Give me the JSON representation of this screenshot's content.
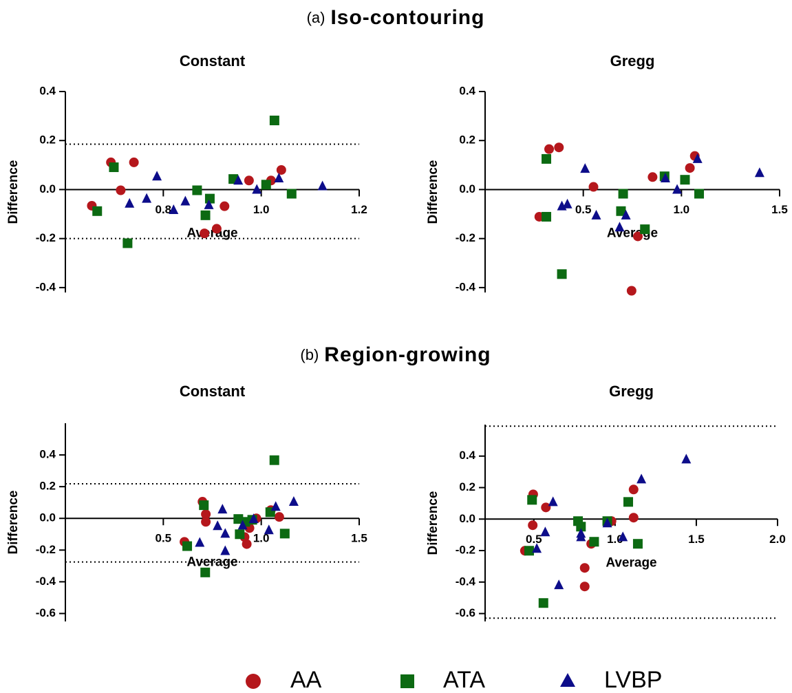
{
  "sections": [
    {
      "label": "(a)",
      "title": "Iso-contouring"
    },
    {
      "label": "(b)",
      "title": "Region-growing"
    }
  ],
  "chart_data": [
    {
      "type": "scatter",
      "title": "Constant",
      "x_label": "Average",
      "y_label": "Difference",
      "xlim": [
        0.6,
        1.2
      ],
      "ylim": [
        -0.42,
        0.4
      ],
      "xticks": [
        0.8,
        {
          "value": 1,
          "label": "1.0"
        },
        1.2
      ],
      "yticks": [
        -0.4,
        -0.2,
        {
          "value": 0,
          "label": "0.0"
        },
        0.2,
        0.4
      ],
      "hlines": [
        0.185,
        -0.2
      ],
      "hline_style": "dotted",
      "grid": false,
      "series": [
        {
          "name": "AA",
          "color": "#b5171c",
          "marker": "circle",
          "x": [
            0.654,
            0.693,
            0.713,
            0.74,
            0.884,
            0.909,
            0.925,
            0.975,
            1.02,
            1.041
          ],
          "values": [
            -0.066,
            0.111,
            -0.003,
            0.111,
            -0.179,
            -0.16,
            -0.068,
            0.037,
            0.037,
            0.08
          ]
        },
        {
          "name": "ATA",
          "color": "#0c6a12",
          "marker": "square",
          "x": [
            0.665,
            0.699,
            0.727,
            0.869,
            0.886,
            0.895,
            0.943,
            1.01,
            1.027,
            1.062
          ],
          "values": [
            -0.088,
            0.091,
            -0.219,
            -0.003,
            -0.105,
            -0.037,
            0.043,
            0.02,
            0.282,
            -0.017
          ]
        },
        {
          "name": "LVBP",
          "color": "#0d0d8a",
          "marker": "triangle",
          "x": [
            0.731,
            0.766,
            0.787,
            0.821,
            0.845,
            0.893,
            0.953,
            0.991,
            1.036,
            1.125
          ],
          "values": [
            -0.057,
            -0.037,
            0.054,
            -0.083,
            -0.048,
            -0.063,
            0.037,
            0.0,
            0.046,
            0.014
          ]
        }
      ]
    },
    {
      "type": "scatter",
      "title": "Gregg",
      "x_label": "Average",
      "y_label": "Difference",
      "xlim": [
        0,
        1.5
      ],
      "ylim": [
        -0.42,
        0.4
      ],
      "xticks": [
        0.5,
        {
          "value": 1,
          "label": "1.0"
        },
        1.5
      ],
      "yticks": [
        -0.4,
        -0.2,
        {
          "value": 0,
          "label": "0.0"
        },
        0.2,
        0.4
      ],
      "hlines": [],
      "hline_style": "dotted",
      "grid": false,
      "series": [
        {
          "name": "AA",
          "color": "#b5171c",
          "marker": "circle",
          "x": [
            0.276,
            0.326,
            0.376,
            0.552,
            0.746,
            0.778,
            0.853,
            1.043,
            1.068
          ],
          "values": [
            -0.111,
            0.165,
            0.172,
            0.011,
            -0.413,
            -0.191,
            0.051,
            0.088,
            0.137
          ]
        },
        {
          "name": "ATA",
          "color": "#0c6a12",
          "marker": "square",
          "x": [
            0.312,
            0.312,
            0.391,
            0.703,
            0.692,
            0.814,
            0.914,
            1.018,
            1.09
          ],
          "values": [
            0.125,
            -0.111,
            -0.345,
            -0.017,
            -0.088,
            -0.162,
            0.054,
            0.04,
            -0.017
          ]
        },
        {
          "name": "LVBP",
          "color": "#0d0d8a",
          "marker": "triangle",
          "x": [
            0.391,
            0.419,
            0.509,
            0.566,
            0.685,
            0.717,
            0.918,
            0.978,
            1.082,
            1.398
          ],
          "values": [
            -0.068,
            -0.06,
            0.085,
            -0.105,
            -0.154,
            -0.105,
            0.046,
            0.0,
            0.125,
            0.068
          ]
        }
      ]
    },
    {
      "type": "scatter",
      "title": "Constant",
      "x_label": "Average",
      "y_label": "Difference",
      "xlim": [
        0,
        1.5
      ],
      "ylim": [
        -0.65,
        0.6
      ],
      "xticks": [
        0.5,
        {
          "value": 1,
          "label": "1.0"
        },
        1.5
      ],
      "yticks": [
        -0.6,
        -0.4,
        -0.2,
        {
          "value": 0,
          "label": "0.0"
        },
        0.2,
        0.4
      ],
      "hlines": [
        0.218,
        -0.275
      ],
      "hline_style": "dotted",
      "grid": false,
      "series": [
        {
          "name": "AA",
          "color": "#b5171c",
          "marker": "circle",
          "x": [
            0.608,
            0.7,
            0.717,
            0.717,
            0.915,
            0.926,
            0.94,
            0.975,
            1.049,
            1.092
          ],
          "values": [
            -0.148,
            0.105,
            0.026,
            -0.022,
            -0.118,
            -0.162,
            -0.061,
            0.0,
            0.052,
            0.009
          ]
        },
        {
          "name": "ATA",
          "color": "#0c6a12",
          "marker": "square",
          "x": [
            0.622,
            0.707,
            0.714,
            0.883,
            0.89,
            0.919,
            0.954,
            1.046,
            1.067,
            1.12
          ],
          "values": [
            -0.175,
            0.083,
            -0.341,
            -0.004,
            -0.1,
            -0.022,
            -0.009,
            0.039,
            0.367,
            -0.096
          ]
        },
        {
          "name": "LVBP",
          "color": "#0d0d8a",
          "marker": "triangle",
          "x": [
            0.686,
            0.777,
            0.802,
            0.816,
            0.816,
            0.905,
            0.961,
            1.039,
            1.074,
            1.166
          ],
          "values": [
            -0.153,
            -0.048,
            0.057,
            -0.096,
            -0.205,
            -0.044,
            -0.004,
            -0.074,
            0.074,
            0.105
          ]
        }
      ]
    },
    {
      "type": "scatter",
      "title": "Gregg",
      "x_label": "Average",
      "y_label": "Difference",
      "xlim": [
        0.2,
        2.0
      ],
      "ylim": [
        -0.65,
        0.6
      ],
      "xticks": [
        0.5,
        {
          "value": 1,
          "label": "1.0"
        },
        1.5,
        {
          "value": 2,
          "label": "2.0"
        }
      ],
      "yticks": [
        -0.6,
        -0.4,
        -0.2,
        {
          "value": 0,
          "label": "0.0"
        },
        0.2,
        0.4
      ],
      "hlines": [
        0.59,
        -0.629
      ],
      "hline_style": "dotted",
      "grid": false,
      "series": [
        {
          "name": "AA",
          "color": "#b5171c",
          "marker": "circle",
          "x": [
            0.445,
            0.496,
            0.493,
            0.574,
            0.813,
            0.853,
            0.813,
            0.978,
            1.114,
            1.114
          ],
          "values": [
            -0.201,
            0.157,
            -0.039,
            0.074,
            -0.428,
            -0.157,
            -0.31,
            -0.013,
            0.188,
            0.009
          ]
        },
        {
          "name": "ATA",
          "color": "#0c6a12",
          "marker": "square",
          "x": [
            0.471,
            0.489,
            0.559,
            0.772,
            0.79,
            0.871,
            0.952,
            1.081,
            1.14
          ],
          "values": [
            -0.201,
            0.122,
            -0.533,
            -0.013,
            -0.048,
            -0.144,
            -0.013,
            0.109,
            -0.157
          ]
        },
        {
          "name": "LVBP",
          "color": "#0d0d8a",
          "marker": "triangle",
          "x": [
            0.518,
            0.57,
            0.618,
            0.654,
            0.79,
            0.79,
            0.952,
            1.048,
            1.162,
            1.438
          ],
          "values": [
            -0.188,
            -0.083,
            0.109,
            -0.419,
            -0.092,
            -0.114,
            -0.026,
            -0.114,
            0.253,
            0.38
          ]
        }
      ]
    }
  ],
  "legend": {
    "position": "bottom"
  }
}
